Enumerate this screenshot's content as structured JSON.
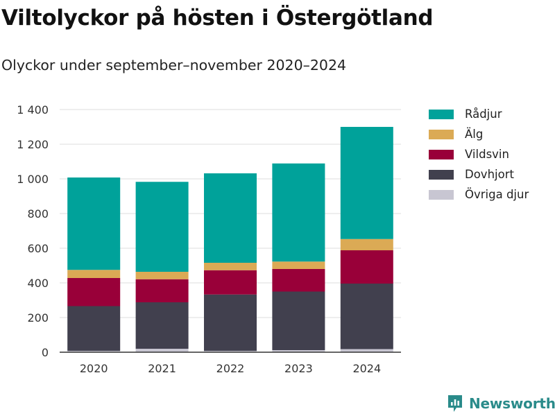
{
  "header": {
    "title": "Viltolyckor på hösten i Östergötland",
    "subtitle": "Olyckor under september–november 2020–2024"
  },
  "brand": {
    "name": "Newsworthy",
    "icon": "newsworthy-logo-icon",
    "color": "#2a8b8a"
  },
  "chart_data": {
    "type": "bar",
    "stacked": true,
    "title": "Viltolyckor på hösten i Östergötland",
    "subtitle": "Olyckor under september–november 2020–2024",
    "xlabel": "",
    "ylabel": "",
    "categories": [
      "2020",
      "2021",
      "2022",
      "2023",
      "2024"
    ],
    "ylim": [
      0,
      1400
    ],
    "yticks": [
      0,
      200,
      400,
      600,
      800,
      1000,
      1200,
      1400
    ],
    "ytick_labels": [
      "0",
      "200",
      "400",
      "600",
      "800",
      "1 000",
      "1 200",
      "1 400"
    ],
    "grid": true,
    "legend_position": "right",
    "series": [
      {
        "name": "Övriga djur",
        "color": "#c8c6d2",
        "values": [
          8,
          20,
          8,
          12,
          18
        ]
      },
      {
        "name": "Dovhjort",
        "color": "#41404e",
        "values": [
          258,
          268,
          325,
          338,
          378
        ]
      },
      {
        "name": "Vildsvin",
        "color": "#990039",
        "values": [
          162,
          133,
          140,
          130,
          192
        ]
      },
      {
        "name": "Älg",
        "color": "#dbaa55",
        "values": [
          47,
          43,
          43,
          43,
          65
        ]
      },
      {
        "name": "Rådjur",
        "color": "#00a29a",
        "values": [
          533,
          519,
          516,
          566,
          647
        ]
      }
    ],
    "legend_order": [
      "Rådjur",
      "Älg",
      "Vildsvin",
      "Dovhjort",
      "Övriga djur"
    ]
  }
}
